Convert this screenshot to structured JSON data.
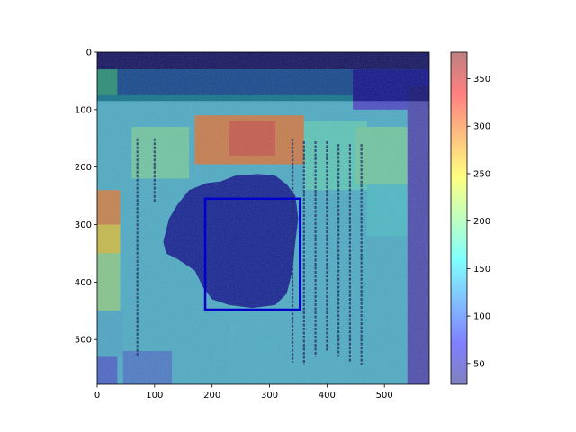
{
  "chart_data": {
    "type": "heatmap",
    "title": "",
    "xlabel": "",
    "ylabel": "",
    "image_width": 578,
    "image_height": 578,
    "xlim": [
      0,
      578
    ],
    "ylim": [
      578,
      0
    ],
    "x_ticks": [
      0,
      100,
      200,
      300,
      400,
      500
    ],
    "y_ticks": [
      0,
      100,
      200,
      300,
      400,
      500
    ],
    "colorbar": {
      "colormap": "jet",
      "alpha": 0.5,
      "range": [
        28,
        378
      ],
      "ticks": [
        50,
        100,
        150,
        200,
        250,
        300,
        350
      ]
    },
    "grid": false,
    "heat_cells": [
      {
        "x0": 0,
        "x1": 578,
        "y0": 0,
        "y1": 578,
        "v": 140
      },
      {
        "x0": 0,
        "x1": 578,
        "y0": 0,
        "y1": 30,
        "v": 40
      },
      {
        "x0": 0,
        "x1": 578,
        "y0": 30,
        "y1": 75,
        "v": 110
      },
      {
        "x0": 0,
        "x1": 35,
        "y0": 30,
        "y1": 75,
        "v": 175
      },
      {
        "x0": 445,
        "x1": 578,
        "y0": 30,
        "y1": 100,
        "v": 70
      },
      {
        "x0": 170,
        "x1": 360,
        "y0": 110,
        "y1": 195,
        "v": 300
      },
      {
        "x0": 230,
        "x1": 310,
        "y0": 120,
        "y1": 180,
        "v": 325
      },
      {
        "x0": 60,
        "x1": 160,
        "y0": 130,
        "y1": 220,
        "v": 185
      },
      {
        "x0": 360,
        "x1": 470,
        "y0": 120,
        "y1": 240,
        "v": 170
      },
      {
        "x0": 0,
        "x1": 40,
        "y0": 240,
        "y1": 300,
        "v": 295
      },
      {
        "x0": 0,
        "x1": 40,
        "y0": 300,
        "y1": 350,
        "v": 255
      },
      {
        "x0": 0,
        "x1": 40,
        "y0": 350,
        "y1": 450,
        "v": 200
      },
      {
        "x0": 0,
        "x1": 45,
        "y0": 450,
        "y1": 530,
        "v": 135
      },
      {
        "x0": 0,
        "x1": 35,
        "y0": 530,
        "y1": 578,
        "v": 90
      },
      {
        "x0": 45,
        "x1": 130,
        "y0": 520,
        "y1": 578,
        "v": 105
      },
      {
        "x0": 450,
        "x1": 560,
        "y0": 130,
        "y1": 230,
        "v": 185
      },
      {
        "x0": 470,
        "x1": 578,
        "y0": 230,
        "y1": 320,
        "v": 150
      },
      {
        "x0": 540,
        "x1": 578,
        "y0": 60,
        "y1": 578,
        "v": 55
      }
    ],
    "text_columns": [
      {
        "x": 70,
        "y0": 150,
        "y1": 530
      },
      {
        "x": 100,
        "y0": 150,
        "y1": 260
      },
      {
        "x": 340,
        "y0": 150,
        "y1": 540
      },
      {
        "x": 360,
        "y0": 155,
        "y1": 545
      },
      {
        "x": 380,
        "y0": 155,
        "y1": 530
      },
      {
        "x": 400,
        "y0": 155,
        "y1": 520
      },
      {
        "x": 420,
        "y0": 160,
        "y1": 530
      },
      {
        "x": 440,
        "y0": 160,
        "y1": 540
      },
      {
        "x": 460,
        "y0": 160,
        "y1": 545
      }
    ],
    "blob": [
      [
        115,
        330
      ],
      [
        125,
        290
      ],
      [
        140,
        265
      ],
      [
        160,
        240
      ],
      [
        190,
        228
      ],
      [
        215,
        225
      ],
      [
        240,
        215
      ],
      [
        280,
        212
      ],
      [
        310,
        215
      ],
      [
        330,
        230
      ],
      [
        345,
        250
      ],
      [
        350,
        290
      ],
      [
        345,
        330
      ],
      [
        340,
        380
      ],
      [
        330,
        420
      ],
      [
        310,
        440
      ],
      [
        270,
        445
      ],
      [
        230,
        440
      ],
      [
        200,
        430
      ],
      [
        185,
        410
      ],
      [
        170,
        380
      ],
      [
        140,
        360
      ],
      [
        120,
        350
      ]
    ],
    "blob_value": 30,
    "box": {
      "x0": 188,
      "y0": 255,
      "x1": 353,
      "y1": 448
    },
    "box_color": "#0000cc"
  }
}
